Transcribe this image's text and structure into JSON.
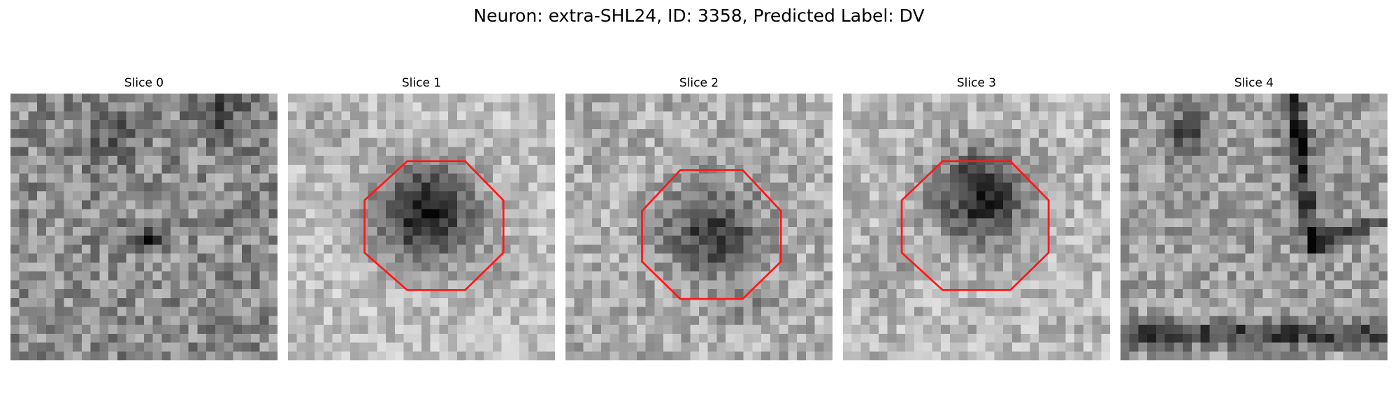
{
  "figure": {
    "title": "Neuron: extra-SHL24, ID: 3358, Predicted Label: DV",
    "roi_color": "#ff1a1a"
  },
  "slices": [
    {
      "label": "Slice 0",
      "has_roi": false
    },
    {
      "label": "Slice 1",
      "has_roi": true
    },
    {
      "label": "Slice 2",
      "has_roi": true
    },
    {
      "label": "Slice 3",
      "has_roi": true
    },
    {
      "label": "Slice 4",
      "has_roi": false
    }
  ]
}
